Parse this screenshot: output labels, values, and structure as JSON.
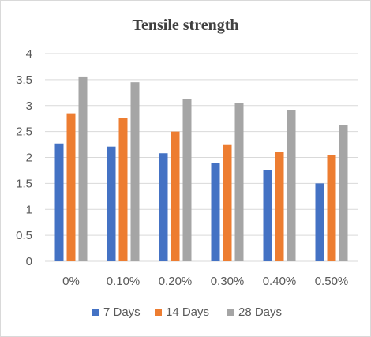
{
  "chart_data": {
    "type": "bar",
    "title": "Tensile strength",
    "xlabel": "",
    "ylabel": "",
    "categories": [
      "0%",
      "0.10%",
      "0.20%",
      "0.30%",
      "0.40%",
      "0.50%"
    ],
    "series": [
      {
        "name": "7 Days",
        "color": "#4472C4",
        "values": [
          2.27,
          2.21,
          2.08,
          1.9,
          1.75,
          1.5
        ]
      },
      {
        "name": "14 Days",
        "color": "#ED7D31",
        "values": [
          2.85,
          2.76,
          2.5,
          2.24,
          2.1,
          2.05
        ]
      },
      {
        "name": "28 Days",
        "color": "#A5A5A5",
        "values": [
          3.56,
          3.45,
          3.12,
          3.05,
          2.91,
          2.63
        ]
      }
    ],
    "ylim": [
      0,
      4
    ],
    "yticks": [
      0,
      0.5,
      1,
      1.5,
      2,
      2.5,
      3,
      3.5,
      4
    ],
    "ytick_labels": [
      "0",
      "0.5",
      "1",
      "1.5",
      "2",
      "2.5",
      "3",
      "3.5",
      "4"
    ],
    "grid": true,
    "legend_position": "bottom"
  }
}
